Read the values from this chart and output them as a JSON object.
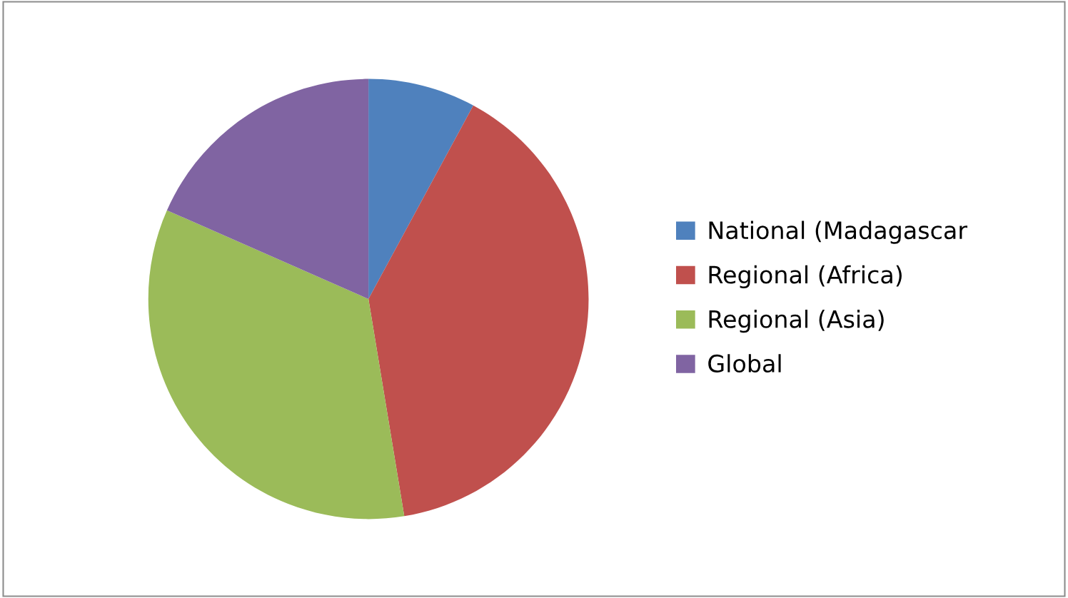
{
  "chart_data": {
    "type": "pie",
    "categories": [
      "National (Madagascar",
      "Regional (Africa)",
      "Regional (Asia)",
      "Global"
    ],
    "values": [
      7.9,
      39.5,
      34.2,
      18.4
    ],
    "colors": [
      "#4f81bd",
      "#c0504d",
      "#9bbb59",
      "#8064a2"
    ],
    "legend": "right"
  }
}
